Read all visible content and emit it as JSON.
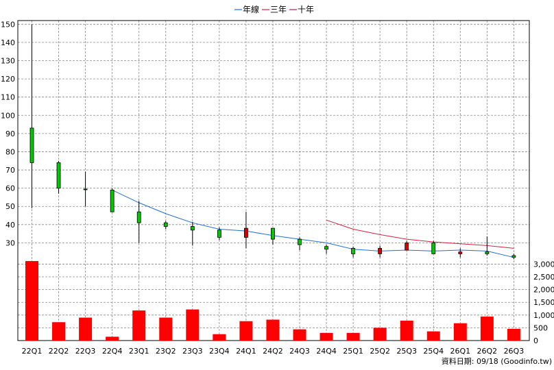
{
  "chart_data": {
    "type": "candlestick",
    "legend": [
      {
        "label": "年線",
        "color": "#1f6fd6"
      },
      {
        "label": "三年",
        "color": "#d8203e"
      },
      {
        "label": "十年",
        "color": "#b0186a"
      }
    ],
    "categories": [
      "22Q1",
      "22Q2",
      "22Q3",
      "22Q4",
      "23Q1",
      "23Q2",
      "23Q3",
      "23Q4",
      "24Q1",
      "24Q2",
      "24Q3",
      "24Q4",
      "25Q1",
      "25Q2",
      "25Q3",
      "25Q4",
      "26Q1",
      "26Q2",
      "26Q3"
    ],
    "price_axis": {
      "min": 20,
      "max": 152,
      "ticks": [
        30,
        40,
        50,
        60,
        70,
        80,
        90,
        100,
        110,
        120,
        130,
        140,
        150
      ]
    },
    "volume_axis": {
      "min": 0,
      "max": 3200,
      "ticks": [
        0,
        500,
        1000,
        1500,
        2000,
        2500,
        3000
      ],
      "tick_labels": [
        "0",
        "500",
        "1,000",
        "1,500",
        "2,000",
        "2,500",
        "3,000"
      ]
    },
    "candles": [
      {
        "open": 74,
        "high": 150,
        "low": 49,
        "close": 93,
        "up": true
      },
      {
        "open": 60,
        "high": 75,
        "low": 57,
        "close": 74,
        "up": true
      },
      {
        "open": 59.5,
        "high": 69,
        "low": 50,
        "close": 59.5,
        "up": true
      },
      {
        "open": 47,
        "high": 60,
        "low": 47,
        "close": 59,
        "up": true
      },
      {
        "open": 41,
        "high": 53,
        "low": 30,
        "close": 47,
        "up": true
      },
      {
        "open": 39,
        "high": 42,
        "low": 37.5,
        "close": 41,
        "up": true
      },
      {
        "open": 37,
        "high": 41.5,
        "low": 28.5,
        "close": 39,
        "up": true
      },
      {
        "open": 33,
        "high": 38.5,
        "low": 31.5,
        "close": 37,
        "up": true
      },
      {
        "open": 38,
        "high": 47,
        "low": 27,
        "close": 33,
        "up": false
      },
      {
        "open": 32,
        "high": 38,
        "low": 29,
        "close": 38,
        "up": true
      },
      {
        "open": 29,
        "high": 33,
        "low": 26,
        "close": 32,
        "up": true
      },
      {
        "open": 26.5,
        "high": 29,
        "low": 24,
        "close": 28,
        "up": true
      },
      {
        "open": 24,
        "high": 28,
        "low": 22,
        "close": 27,
        "up": true
      },
      {
        "open": 27,
        "high": 28.5,
        "low": 22,
        "close": 24,
        "up": false
      },
      {
        "open": 30,
        "high": 31,
        "low": 26,
        "close": 26,
        "up": false
      },
      {
        "open": 24,
        "high": 31,
        "low": 24,
        "close": 30,
        "up": true
      },
      {
        "open": 25,
        "high": 27,
        "low": 22,
        "close": 24,
        "up": false
      },
      {
        "open": 24,
        "high": 33.5,
        "low": 23,
        "close": 25,
        "up": true
      },
      {
        "open": 22,
        "high": 24,
        "low": 21,
        "close": 23,
        "up": true
      }
    ],
    "series": [
      {
        "name": "年線",
        "color": "#1f6fd6",
        "values": [
          null,
          null,
          null,
          59,
          52,
          46,
          41,
          37.5,
          36.5,
          34,
          32,
          30,
          26.5,
          25.5,
          26,
          25.5,
          26,
          25.5,
          22
        ]
      },
      {
        "name": "三年",
        "color": "#d8203e",
        "values": [
          null,
          null,
          null,
          null,
          null,
          null,
          null,
          null,
          null,
          null,
          null,
          42.5,
          37.5,
          34.5,
          32,
          30.5,
          29.5,
          28.5,
          27
        ]
      }
    ],
    "volumes": [
      3120,
      720,
      900,
      150,
      1180,
      900,
      1220,
      250,
      760,
      820,
      440,
      300,
      300,
      500,
      780,
      360,
      680,
      940,
      460
    ],
    "volume_color": "#ff0000",
    "up_color": "#00c800",
    "down_color": "#d80000",
    "grid": true,
    "legend_position": "top"
  },
  "footer": {
    "source_text": "資料日期: 09/18  (Goodinfo.tw)"
  }
}
